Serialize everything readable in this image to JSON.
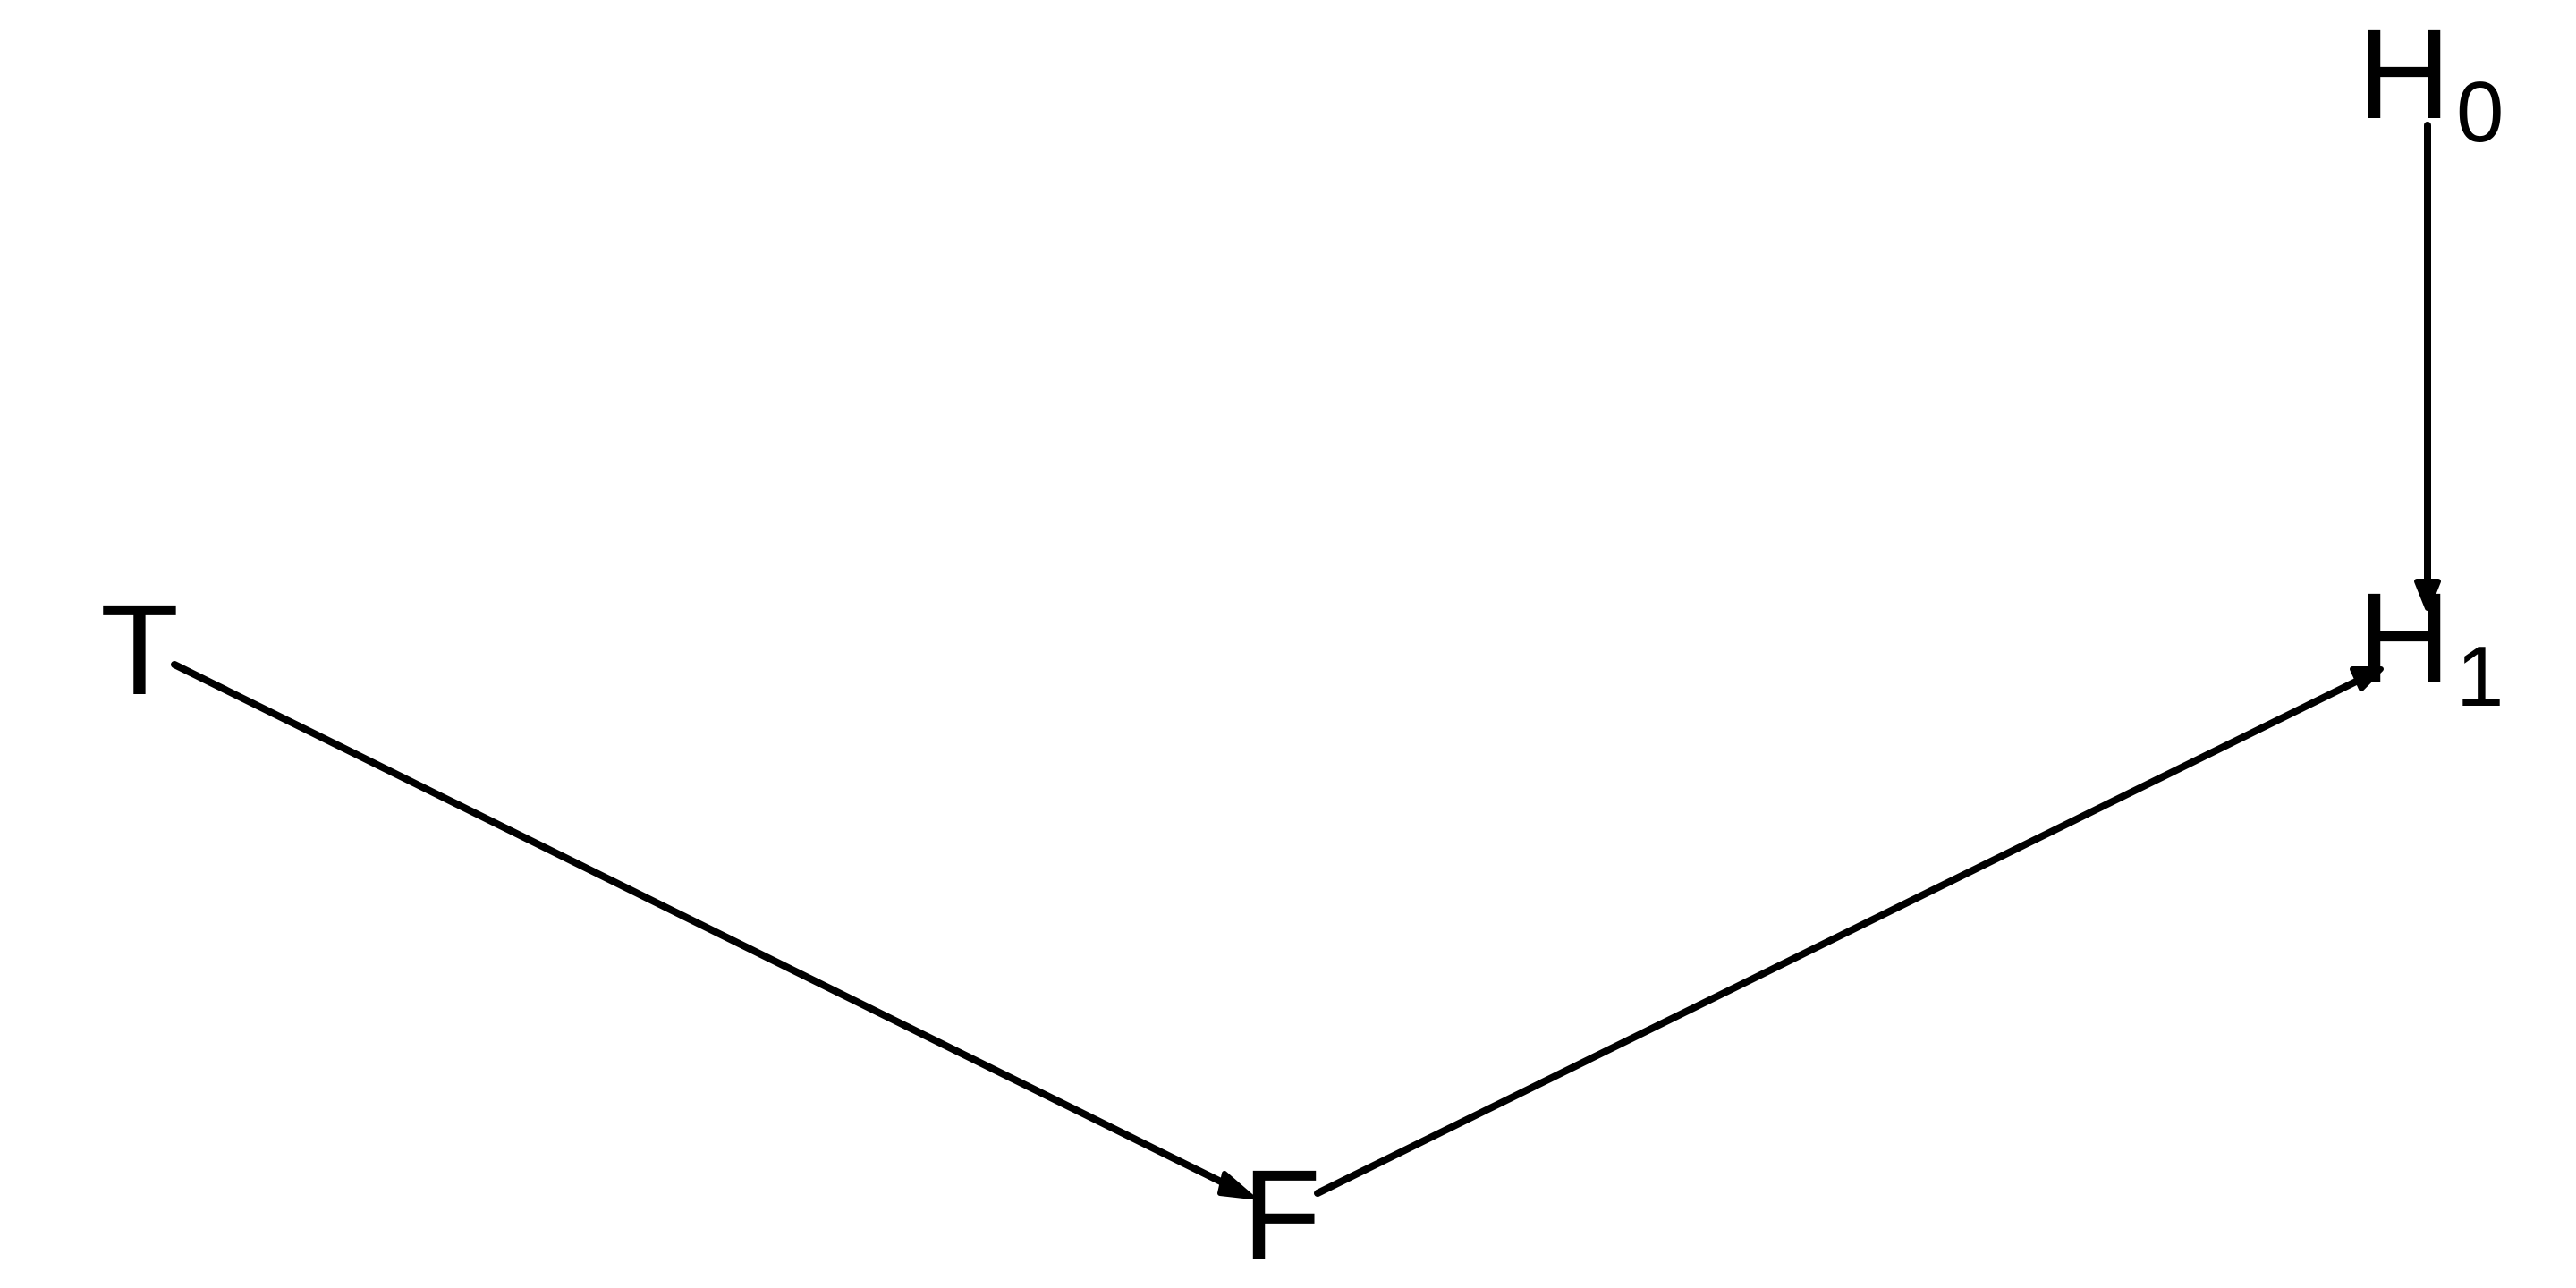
{
  "diagram": {
    "type": "directed-graph",
    "colors": {
      "background": "#ffffff",
      "ink": "#000000"
    },
    "nodes": [
      {
        "id": "T",
        "label": "T",
        "subscript": ""
      },
      {
        "id": "F",
        "label": "F",
        "subscript": ""
      },
      {
        "id": "H1",
        "label": "H",
        "subscript": "1"
      },
      {
        "id": "H0",
        "label": "H",
        "subscript": "0"
      }
    ],
    "edges": [
      {
        "from": "T",
        "to": "F"
      },
      {
        "from": "F",
        "to": "H1"
      },
      {
        "from": "H0",
        "to": "H1"
      }
    ]
  }
}
